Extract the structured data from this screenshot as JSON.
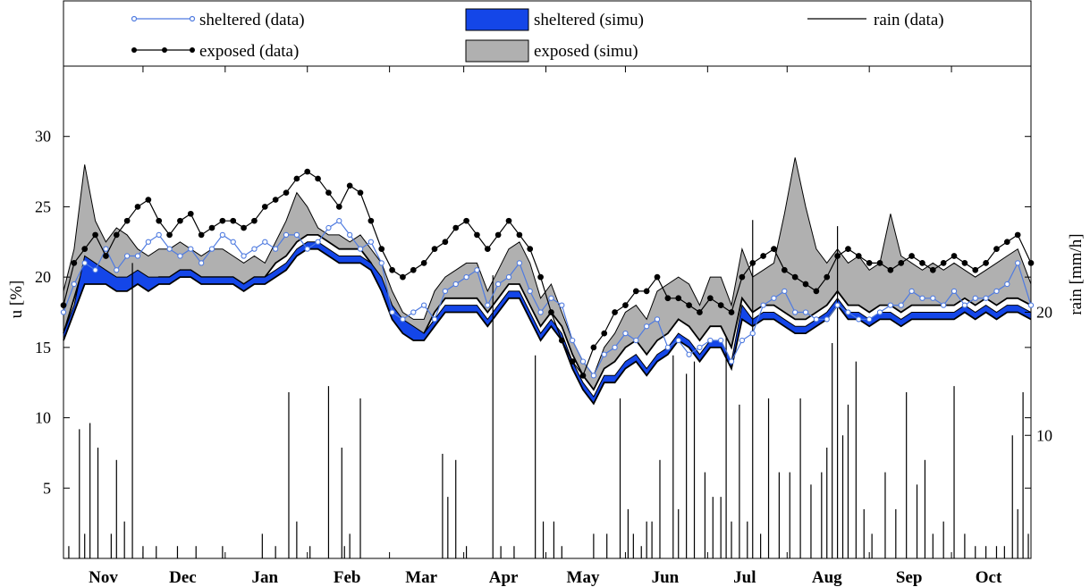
{
  "chart_data": {
    "type": "line",
    "title": "",
    "xlabel": "",
    "ylabel": "u [%]",
    "y2label": "rain [mm/h]",
    "ylim": [
      0,
      35
    ],
    "y2lim": [
      0,
      40
    ],
    "yticks": [
      5,
      10,
      15,
      20,
      25,
      30
    ],
    "y2ticks": [
      10,
      20
    ],
    "xlim": [
      0,
      365
    ],
    "months": [
      {
        "label": "Nov",
        "x": 15
      },
      {
        "label": "Dec",
        "x": 45
      },
      {
        "label": "Jan",
        "x": 76
      },
      {
        "label": "Feb",
        "x": 107
      },
      {
        "label": "Mar",
        "x": 135
      },
      {
        "label": "Apr",
        "x": 166
      },
      {
        "label": "May",
        "x": 196
      },
      {
        "label": "Jun",
        "x": 227
      },
      {
        "label": "Jul",
        "x": 257
      },
      {
        "label": "Aug",
        "x": 288
      },
      {
        "label": "Sep",
        "x": 319
      },
      {
        "label": "Oct",
        "x": 349
      }
    ],
    "legend": {
      "placement": "top",
      "entries": [
        "sheltered (data)",
        "sheltered (simu)",
        "rain (data)",
        "exposed (data)",
        "exposed (simu)"
      ]
    },
    "colors": {
      "sheltered_data": "#4f7be0",
      "sheltered_simu": "#1446e8",
      "exposed_data": "#000000",
      "exposed_simu": "#b0b0b0",
      "rain": "#000000"
    },
    "series": [
      {
        "name": "sheltered (data)",
        "x": [
          0,
          4,
          8,
          12,
          16,
          20,
          24,
          28,
          32,
          36,
          40,
          44,
          48,
          52,
          56,
          60,
          64,
          68,
          72,
          76,
          80,
          84,
          88,
          92,
          96,
          100,
          104,
          108,
          112,
          116,
          120,
          124,
          128,
          132,
          136,
          140,
          144,
          148,
          152,
          156,
          160,
          164,
          168,
          172,
          176,
          180,
          184,
          188,
          192,
          196,
          200,
          204,
          208,
          212,
          216,
          220,
          224,
          228,
          232,
          236,
          240,
          244,
          248,
          252,
          256,
          260,
          264,
          268,
          272,
          276,
          280,
          284,
          288,
          292,
          296,
          300,
          304,
          308,
          312,
          316,
          320,
          324,
          328,
          332,
          336,
          340,
          344,
          348,
          352,
          356,
          360,
          365
        ],
        "y": [
          17.5,
          19.5,
          21,
          20.5,
          22,
          20.5,
          21.5,
          21.5,
          22.5,
          23,
          22,
          21.5,
          22,
          21,
          22,
          23,
          22.5,
          21.5,
          22,
          22.5,
          22,
          23,
          23,
          22,
          22.5,
          23.5,
          24,
          23,
          22,
          22.5,
          21,
          17.5,
          17,
          17.5,
          18,
          17,
          19,
          19.5,
          20,
          20.5,
          18,
          19.5,
          20,
          21,
          19,
          17.5,
          18.5,
          18,
          15.5,
          14,
          13,
          14.5,
          15,
          16,
          15.5,
          16.5,
          17,
          15,
          15.5,
          14.5,
          15,
          15.5,
          15.5,
          14,
          15.5,
          16,
          18,
          18.5,
          19,
          17.5,
          17.5,
          17,
          17,
          18,
          17.5,
          17,
          17,
          17.5,
          18,
          18,
          19,
          18.5,
          18.5,
          18,
          19,
          18,
          18.5,
          18.5,
          19,
          19.5,
          21,
          18
        ]
      },
      {
        "name": "exposed (data)",
        "x": [
          0,
          4,
          8,
          12,
          16,
          20,
          24,
          28,
          32,
          36,
          40,
          44,
          48,
          52,
          56,
          60,
          64,
          68,
          72,
          76,
          80,
          84,
          88,
          92,
          96,
          100,
          104,
          108,
          112,
          116,
          120,
          124,
          128,
          132,
          136,
          140,
          144,
          148,
          152,
          156,
          160,
          164,
          168,
          172,
          176,
          180,
          184,
          188,
          192,
          196,
          200,
          204,
          208,
          212,
          216,
          220,
          224,
          228,
          232,
          236,
          240,
          244,
          248,
          252,
          256,
          260,
          264,
          268,
          272,
          276,
          280,
          284,
          288,
          292,
          296,
          300,
          304,
          308,
          312,
          316,
          320,
          324,
          328,
          332,
          336,
          340,
          344,
          348,
          352,
          356,
          360,
          365
        ],
        "y": [
          18,
          21,
          22,
          23,
          21.5,
          23,
          24,
          25,
          25.5,
          24,
          23,
          24,
          24.5,
          23,
          23.5,
          24,
          24,
          23.5,
          24,
          25,
          25.5,
          26,
          27,
          27.5,
          27,
          26,
          25,
          26.5,
          26,
          24,
          22,
          20.5,
          20,
          20.5,
          21,
          22,
          22.5,
          23.5,
          24,
          23,
          22,
          23,
          24,
          23,
          22,
          20,
          17.5,
          15.5,
          14,
          13,
          15,
          16,
          17.5,
          18,
          19,
          19,
          20,
          18.5,
          18.5,
          18,
          17.5,
          18.5,
          18,
          17.5,
          20,
          21,
          21.5,
          22,
          20.5,
          20,
          19.5,
          19,
          20,
          21.5,
          22,
          21.5,
          21,
          21,
          20.5,
          21,
          21.5,
          21,
          20.5,
          21,
          21.5,
          21,
          20.5,
          21,
          22,
          22.5,
          23,
          21
        ]
      },
      {
        "name": "sheltered (simu)",
        "type": "band",
        "x": [
          0,
          4,
          8,
          12,
          16,
          20,
          24,
          28,
          32,
          36,
          40,
          44,
          48,
          52,
          56,
          60,
          64,
          68,
          72,
          76,
          80,
          84,
          88,
          92,
          96,
          100,
          104,
          108,
          112,
          116,
          120,
          124,
          128,
          132,
          136,
          140,
          144,
          148,
          152,
          156,
          160,
          164,
          168,
          172,
          176,
          180,
          184,
          188,
          192,
          196,
          200,
          204,
          208,
          212,
          216,
          220,
          224,
          228,
          232,
          236,
          240,
          244,
          248,
          252,
          256,
          260,
          264,
          268,
          272,
          276,
          280,
          284,
          288,
          292,
          296,
          300,
          304,
          308,
          312,
          316,
          320,
          324,
          328,
          332,
          336,
          340,
          344,
          348,
          352,
          356,
          360,
          365
        ],
        "low": [
          15.5,
          17.5,
          19.5,
          19.5,
          19.5,
          19,
          19,
          19.5,
          19,
          19.5,
          19.5,
          20,
          20,
          19.5,
          19.5,
          19.5,
          19.5,
          19,
          19.5,
          19.5,
          20,
          20.5,
          21.5,
          22,
          22,
          21.5,
          21,
          21,
          21,
          20.5,
          19,
          17,
          16,
          15.5,
          15.5,
          16.5,
          17.5,
          17.5,
          17.5,
          17.5,
          16.5,
          17.5,
          18.5,
          18.5,
          17,
          15.5,
          16.5,
          15.5,
          13.5,
          12,
          11,
          12.5,
          12.5,
          13.5,
          14,
          13,
          14,
          14.5,
          15.5,
          15,
          14,
          15,
          15,
          13.5,
          17,
          16.5,
          17,
          17,
          16.5,
          16,
          16,
          16.5,
          17,
          18,
          17,
          17,
          16.5,
          17,
          17,
          16.5,
          17,
          17,
          17,
          17,
          17,
          17.5,
          17,
          17.5,
          17,
          17.5,
          17.5,
          17
        ],
        "high": [
          16,
          18,
          21.5,
          21,
          20.5,
          20,
          20,
          20.5,
          20,
          20,
          20,
          20.5,
          20.5,
          20,
          20,
          20,
          20,
          19.5,
          20,
          20,
          20.5,
          21,
          22,
          22.5,
          22.5,
          22,
          21.5,
          21.5,
          21.5,
          21,
          20,
          18,
          17,
          16.5,
          16,
          17,
          18,
          18,
          18,
          18,
          17,
          18,
          19,
          19,
          17.5,
          16,
          17,
          16,
          14,
          12.5,
          11.5,
          13,
          13,
          14,
          14.5,
          13.5,
          14.5,
          15,
          16,
          15.5,
          14.5,
          15.5,
          15.5,
          14,
          18,
          17,
          17.5,
          17.5,
          17,
          16.5,
          16.5,
          17,
          17.5,
          18.5,
          17.5,
          17.5,
          17,
          17.5,
          17.5,
          17,
          17.5,
          17.5,
          17.5,
          17.5,
          17.5,
          18,
          17.5,
          18,
          17.5,
          18,
          18,
          17.5
        ]
      },
      {
        "name": "exposed (simu)",
        "type": "band",
        "x": [
          0,
          4,
          8,
          12,
          16,
          20,
          24,
          28,
          32,
          36,
          40,
          44,
          48,
          52,
          56,
          60,
          64,
          68,
          72,
          76,
          80,
          84,
          88,
          92,
          96,
          100,
          104,
          108,
          112,
          116,
          120,
          124,
          128,
          132,
          136,
          140,
          144,
          148,
          152,
          156,
          160,
          164,
          168,
          172,
          176,
          180,
          184,
          188,
          192,
          196,
          200,
          204,
          208,
          212,
          216,
          220,
          224,
          228,
          232,
          236,
          240,
          244,
          248,
          252,
          256,
          260,
          264,
          268,
          272,
          276,
          280,
          284,
          288,
          292,
          296,
          300,
          304,
          308,
          312,
          316,
          320,
          324,
          328,
          332,
          336,
          340,
          344,
          348,
          352,
          356,
          360,
          365
        ],
        "low": [
          16,
          18.5,
          21,
          20.5,
          20,
          19.5,
          19.5,
          20,
          19.5,
          20,
          20,
          20.5,
          20.5,
          20,
          20,
          20,
          20,
          19.5,
          20,
          20,
          21,
          21.5,
          22.5,
          23,
          23,
          22.5,
          22,
          22,
          22,
          21,
          19.5,
          17.5,
          16.5,
          16,
          16,
          17.5,
          18.5,
          18.5,
          18.5,
          18.5,
          17.5,
          18.5,
          19.5,
          19.5,
          18,
          16.5,
          17.5,
          16.5,
          14.5,
          13,
          12,
          13.5,
          14,
          15,
          15.5,
          14.5,
          15.5,
          16,
          17,
          16.5,
          15.5,
          16.5,
          16.5,
          15,
          18.5,
          17.5,
          18,
          18,
          17.5,
          17,
          17,
          17.5,
          18,
          19,
          18,
          18,
          17.5,
          18,
          18,
          17.5,
          18,
          18,
          18,
          18,
          18,
          18.5,
          18,
          18.5,
          18,
          18.5,
          18.5,
          18
        ],
        "high": [
          19,
          22,
          28,
          24,
          22.5,
          23.5,
          23,
          22,
          21.5,
          22,
          22,
          22.5,
          22,
          21.5,
          22,
          22,
          21.5,
          21,
          21.5,
          21,
          22.5,
          24,
          26,
          25,
          23.5,
          23,
          23,
          22.5,
          23,
          22,
          21,
          19,
          17.5,
          17,
          17,
          19,
          20,
          20.5,
          21,
          21,
          19,
          20.5,
          22,
          22.5,
          21,
          18.5,
          19.5,
          17.5,
          15.5,
          14,
          13,
          15,
          16,
          17.5,
          18,
          17,
          19,
          19.5,
          20,
          19.5,
          18,
          20,
          20,
          18,
          22,
          20,
          20.5,
          21,
          24.5,
          28.5,
          25,
          22,
          21,
          22,
          21,
          21.5,
          20.5,
          21,
          24.5,
          21.5,
          21,
          20.5,
          21,
          20.5,
          21,
          20.5,
          20,
          20.5,
          21,
          21.5,
          22,
          19.5
        ]
      },
      {
        "name": "rain (data)",
        "type": "spikes",
        "x": [
          2,
          6,
          8,
          10,
          13,
          18,
          20,
          23,
          26,
          30,
          35,
          43,
          50,
          60,
          75,
          80,
          85,
          88,
          93,
          100,
          105,
          106,
          108,
          112,
          143,
          145,
          148,
          152,
          162,
          165,
          170,
          178,
          181,
          185,
          188,
          200,
          205,
          210,
          213,
          215,
          218,
          220,
          222,
          225,
          230,
          232,
          235,
          238,
          242,
          245,
          248,
          250,
          252,
          255,
          258,
          260,
          263,
          266,
          270,
          274,
          278,
          282,
          286,
          288,
          290,
          292,
          294,
          296,
          299,
          302,
          305,
          310,
          314,
          318,
          322,
          325,
          328,
          332,
          336,
          340,
          344,
          348,
          352,
          355,
          358,
          360,
          362,
          364
        ],
        "y": [
          1,
          10.5,
          2,
          11,
          9,
          2,
          8,
          3,
          24,
          1,
          1,
          1,
          1,
          1,
          2,
          1,
          13.5,
          3,
          1,
          14,
          9,
          1,
          2,
          13,
          8.5,
          5,
          8,
          1,
          23,
          1,
          1,
          16.5,
          3,
          3,
          1,
          2,
          2,
          13,
          4,
          2,
          1,
          3,
          3,
          8,
          16.5,
          4,
          15,
          16,
          7,
          5,
          5,
          18,
          3,
          12.5,
          3,
          27.5,
          2,
          13,
          7,
          7,
          13,
          6,
          7,
          9,
          17.5,
          27,
          10,
          12.5,
          16,
          4,
          2,
          7,
          4,
          13.5,
          6,
          8,
          2,
          3,
          14,
          2,
          1,
          1,
          1,
          1,
          10,
          4,
          13.5,
          2
        ]
      }
    ]
  }
}
